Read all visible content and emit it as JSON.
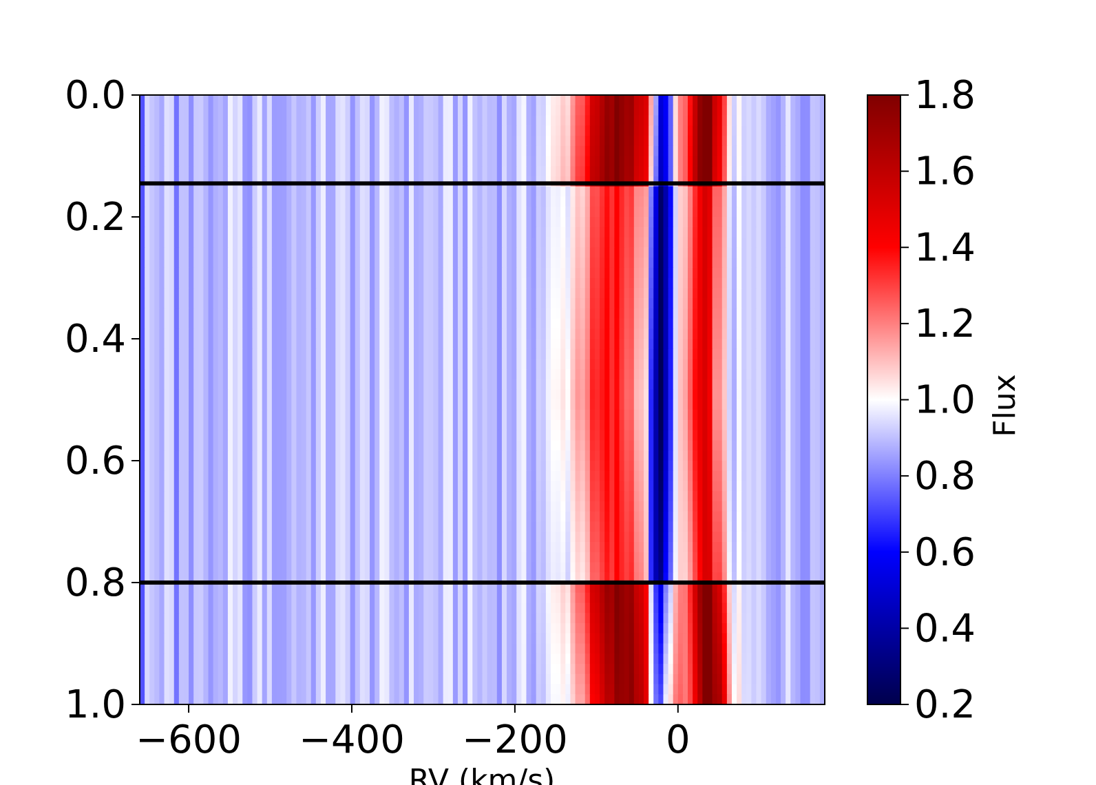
{
  "chart_data": {
    "type": "heatmap",
    "title": "",
    "xlabel": "RV (km/s)",
    "ylabel": "",
    "xlim": [
      -660,
      180
    ],
    "ylim": [
      1.0,
      0.0
    ],
    "y_inverted": true,
    "xticks": [
      -600,
      -400,
      -200,
      0
    ],
    "xtick_labels": [
      "−600",
      "−400",
      "−200",
      "0"
    ],
    "yticks": [
      0.0,
      0.2,
      0.4,
      0.6,
      0.8,
      1.0
    ],
    "ytick_labels": [
      "0.0",
      "0.2",
      "0.4",
      "0.6",
      "0.8",
      "1.0"
    ],
    "grid": false,
    "colormap": "seismic",
    "colorbar": {
      "label": "Flux",
      "range": [
        0.2,
        1.8
      ],
      "ticks": [
        0.2,
        0.4,
        0.6,
        0.8,
        1.0,
        1.2,
        1.4,
        1.6,
        1.8
      ],
      "tick_labels": [
        "0.2",
        "0.4",
        "0.6",
        "0.8",
        "1.0",
        "1.2",
        "1.4",
        "1.6",
        "1.8"
      ]
    },
    "horizontal_lines": [
      0.145,
      0.8
    ],
    "features": [
      {
        "name": "absorption trough",
        "rv_at_phase": [
          [
            0.0,
            -20
          ],
          [
            0.5,
            -22
          ],
          [
            1.0,
            -25
          ]
        ],
        "flux": 0.55
      },
      {
        "name": "blue-side emission",
        "rv_at_phase": [
          [
            0.0,
            -70
          ],
          [
            0.5,
            -85
          ],
          [
            1.0,
            -60
          ]
        ],
        "flux_in": 1.35,
        "flux_out": 1.75
      },
      {
        "name": "red-side emission",
        "rv_at_phase": [
          [
            0.0,
            35
          ],
          [
            0.5,
            30
          ],
          [
            1.0,
            40
          ]
        ],
        "flux_in": 1.45,
        "flux_out": 1.8
      }
    ],
    "background_flux": 0.9
  }
}
